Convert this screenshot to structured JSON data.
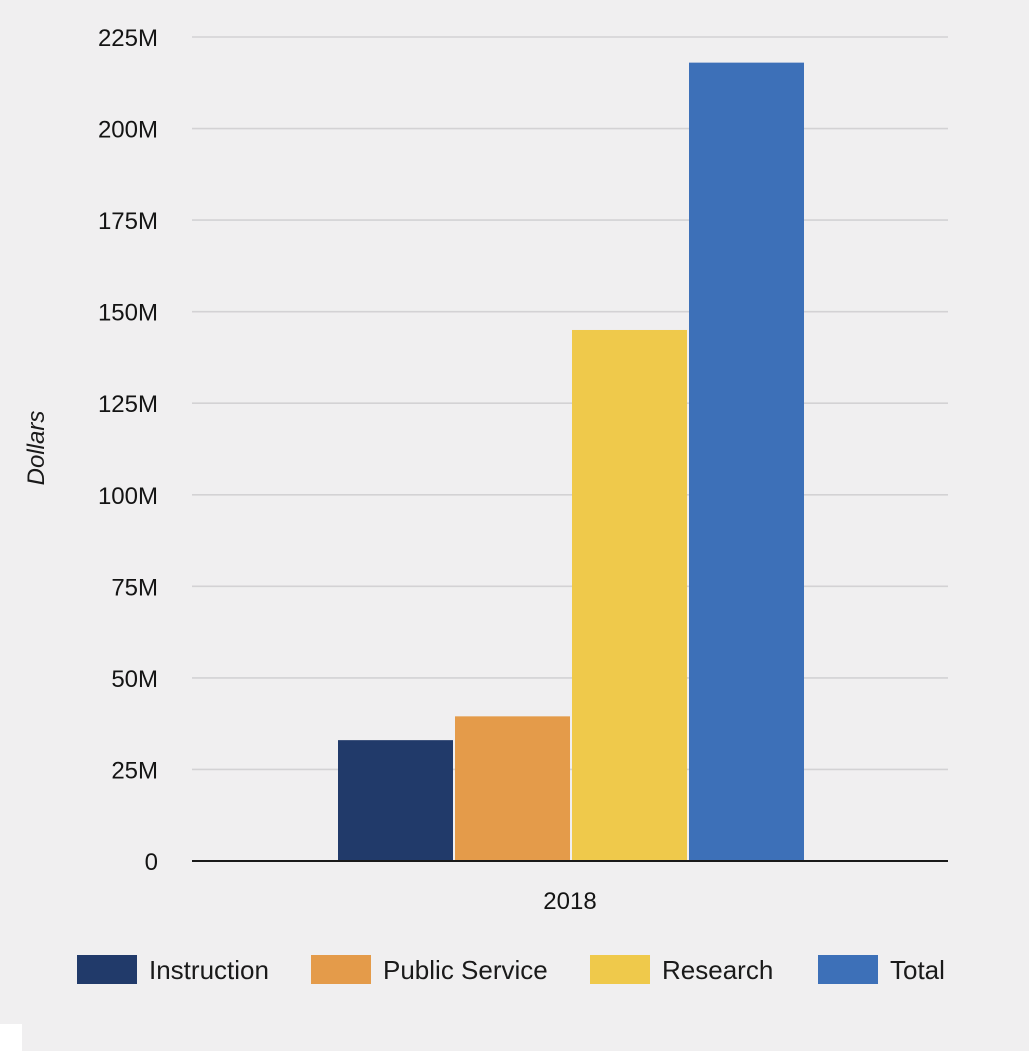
{
  "chart_data": {
    "type": "bar",
    "title": "",
    "xlabel": "",
    "ylabel": "Dollars",
    "categories": [
      "2018"
    ],
    "series": [
      {
        "name": "Instruction",
        "values": [
          33000000
        ],
        "color": "#213a6a"
      },
      {
        "name": "Public Service",
        "values": [
          39500000
        ],
        "color": "#e49b4a"
      },
      {
        "name": "Research",
        "values": [
          145000000
        ],
        "color": "#efc94b"
      },
      {
        "name": "Total",
        "values": [
          218000000
        ],
        "color": "#3d70b8"
      }
    ],
    "ylim": [
      0,
      225000000
    ],
    "yticks": [
      0,
      25000000,
      50000000,
      75000000,
      100000000,
      125000000,
      150000000,
      175000000,
      200000000,
      225000000
    ],
    "ytick_labels": [
      "0",
      "25M",
      "50M",
      "75M",
      "100M",
      "125M",
      "150M",
      "175M",
      "200M",
      "225M"
    ],
    "grid": true,
    "legend_position": "bottom"
  }
}
